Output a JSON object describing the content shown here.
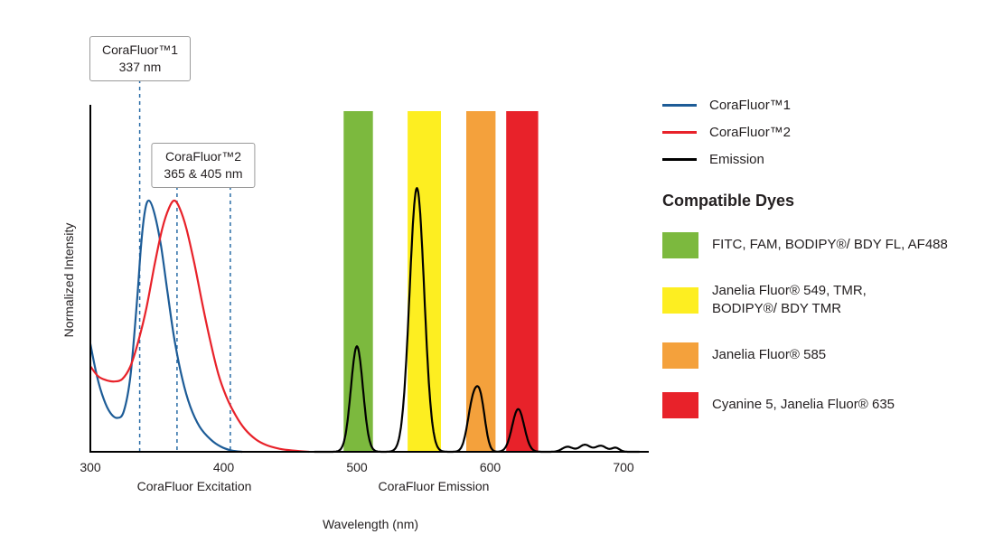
{
  "callouts": [
    {
      "line1": "CoraFluor™1",
      "line2": "337 nm"
    },
    {
      "line1": "CoraFluor™2",
      "line2": "365 & 405 nm"
    }
  ],
  "legend": {
    "entries": [
      {
        "label": "CoraFluor™1",
        "color": "#1d5c97"
      },
      {
        "label": "CoraFluor™2",
        "color": "#e8222a"
      },
      {
        "label": "Emission",
        "color": "#000000"
      }
    ],
    "compatible_dyes_title": "Compatible Dyes",
    "dyes": [
      {
        "label": "FITC, FAM, BODIPY®/ BDY FL, AF488",
        "color": "#7cb93e"
      },
      {
        "label": "Janelia Fluor® 549, TMR,\nBODIPY®/ BDY TMR",
        "color": "#fdee21"
      },
      {
        "label": "Janelia Fluor® 585",
        "color": "#f4a13c"
      },
      {
        "label": "Cyanine 5, Janelia Fluor® 635",
        "color": "#e8222a"
      }
    ]
  },
  "chart_data": {
    "type": "line",
    "title": "",
    "xlabel": "Wavelength (nm)",
    "ylabel": "Normalized Intensity",
    "xlim": [
      300,
      700
    ],
    "ylim": [
      0,
      1.1
    ],
    "x_ticks": [
      300,
      400,
      500,
      600,
      700
    ],
    "x_region_labels": [
      {
        "label": "CoraFluor Excitation",
        "range_nm": [
          300,
          450
        ]
      },
      {
        "label": "CoraFluor Emission",
        "range_nm": [
          480,
          700
        ]
      }
    ],
    "marker_color": "#2a6ca6",
    "dashed_markers": [
      {
        "nm": 337,
        "label": "CoraFluor™1 337 nm"
      },
      {
        "nm": 365,
        "label": "CoraFluor™2 365 nm"
      },
      {
        "nm": 405,
        "label": "CoraFluor™2 405 nm"
      }
    ],
    "bands": [
      {
        "name": "green",
        "color": "#7cb93e",
        "range_nm": [
          490,
          512
        ],
        "dyes": "FITC, FAM, BODIPY®/ BDY FL, AF488"
      },
      {
        "name": "yellow",
        "color": "#fdee21",
        "range_nm": [
          538,
          563
        ],
        "dyes": "Janelia Fluor® 549, TMR, BODIPY®/ BDY TMR"
      },
      {
        "name": "orange",
        "color": "#f4a13c",
        "range_nm": [
          582,
          604
        ],
        "dyes": "Janelia Fluor® 585"
      },
      {
        "name": "red",
        "color": "#e8222a",
        "range_nm": [
          612,
          636
        ],
        "dyes": "Cyanine 5, Janelia Fluor® 635"
      }
    ],
    "series": [
      {
        "name": "CoraFluor™1",
        "role": "excitation",
        "color": "#1d5c97",
        "points": [
          [
            300,
            0.43
          ],
          [
            305,
            0.3
          ],
          [
            310,
            0.21
          ],
          [
            315,
            0.155
          ],
          [
            320,
            0.135
          ],
          [
            325,
            0.16
          ],
          [
            330,
            0.3
          ],
          [
            335,
            0.6
          ],
          [
            338,
            0.82
          ],
          [
            341,
            0.96
          ],
          [
            344,
            1.0
          ],
          [
            348,
            0.95
          ],
          [
            353,
            0.82
          ],
          [
            358,
            0.63
          ],
          [
            363,
            0.45
          ],
          [
            369,
            0.29
          ],
          [
            375,
            0.18
          ],
          [
            382,
            0.1
          ],
          [
            390,
            0.05
          ],
          [
            398,
            0.02
          ],
          [
            406,
            0.005
          ],
          [
            414,
            0.0
          ]
        ]
      },
      {
        "name": "CoraFluor™2",
        "role": "excitation",
        "color": "#e8222a",
        "points": [
          [
            300,
            0.34
          ],
          [
            306,
            0.3
          ],
          [
            312,
            0.285
          ],
          [
            318,
            0.28
          ],
          [
            324,
            0.29
          ],
          [
            330,
            0.34
          ],
          [
            336,
            0.44
          ],
          [
            342,
            0.57
          ],
          [
            348,
            0.74
          ],
          [
            354,
            0.89
          ],
          [
            359,
            0.97
          ],
          [
            363,
            1.0
          ],
          [
            367,
            0.97
          ],
          [
            372,
            0.89
          ],
          [
            378,
            0.75
          ],
          [
            384,
            0.59
          ],
          [
            390,
            0.44
          ],
          [
            396,
            0.31
          ],
          [
            402,
            0.22
          ],
          [
            409,
            0.145
          ],
          [
            416,
            0.09
          ],
          [
            424,
            0.05
          ],
          [
            432,
            0.027
          ],
          [
            442,
            0.012
          ],
          [
            452,
            0.005
          ],
          [
            464,
            0.0
          ]
        ]
      },
      {
        "name": "Emission",
        "role": "emission",
        "color": "#000000",
        "gaussian_peaks": [
          [
            500,
            0.42,
            4.5
          ],
          [
            545,
            1.05,
            5.5
          ],
          [
            587,
            0.19,
            4.0
          ],
          [
            593,
            0.17,
            3.5
          ],
          [
            621,
            0.17,
            4.5
          ],
          [
            658,
            0.02,
            4.0
          ],
          [
            671,
            0.028,
            4.0
          ],
          [
            683,
            0.024,
            4.0
          ],
          [
            694,
            0.016,
            3.0
          ]
        ]
      }
    ]
  }
}
